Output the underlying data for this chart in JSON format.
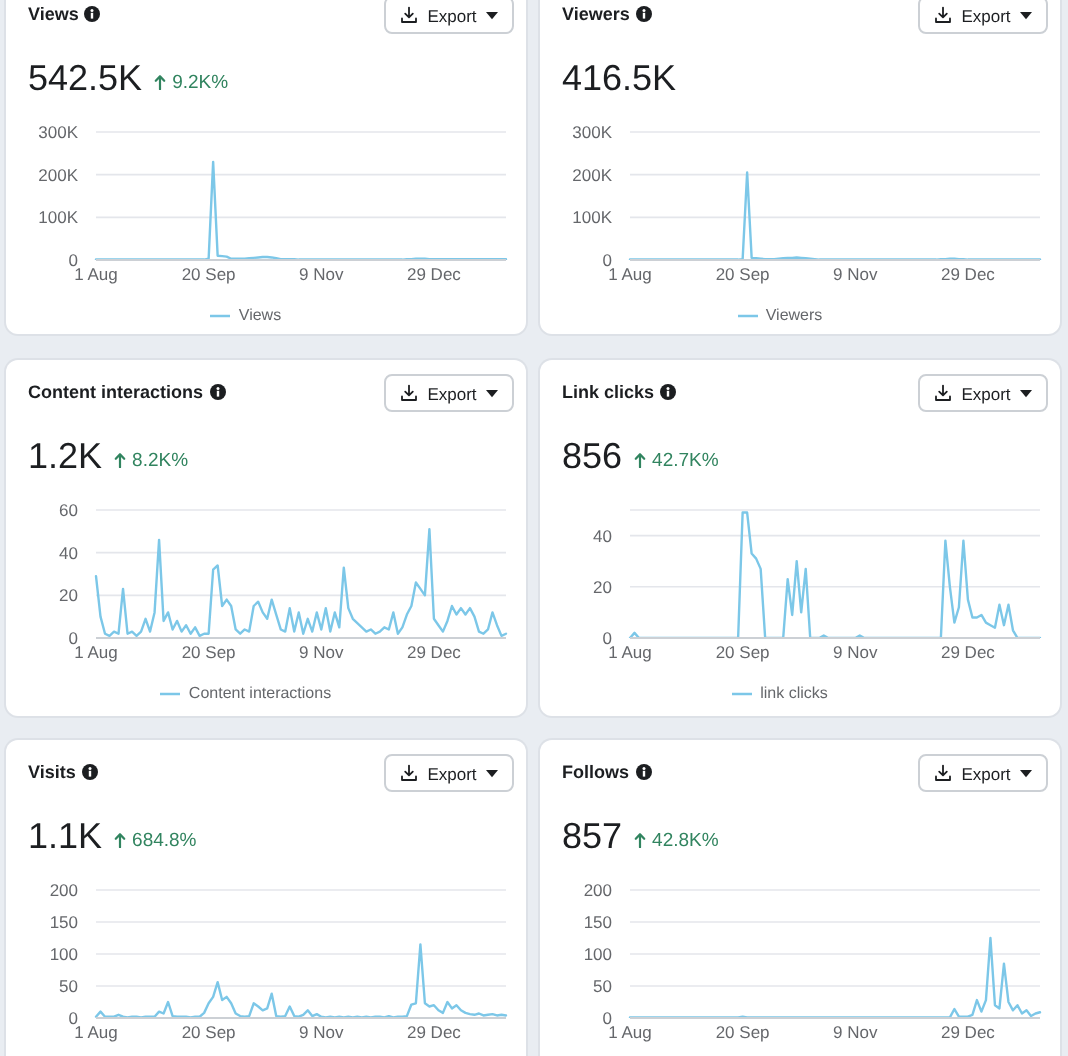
{
  "chart_data": [
    {
      "type": "line",
      "title": "Views",
      "subtitle": "542.5K",
      "annotations": [
        "9.2K%",
        "Export"
      ],
      "categories": [
        "1 Aug",
        null,
        null,
        null,
        null,
        null,
        null,
        null,
        null,
        null,
        null,
        null,
        null,
        null,
        null,
        null,
        null,
        null,
        null,
        null,
        null,
        null,
        null,
        null,
        null,
        "20 Sep",
        null,
        null,
        null,
        null,
        null,
        null,
        null,
        null,
        null,
        null,
        null,
        null,
        null,
        null,
        null,
        null,
        null,
        null,
        null,
        null,
        null,
        null,
        null,
        null,
        "9 Nov",
        null,
        null,
        null,
        null,
        null,
        null,
        null,
        null,
        null,
        null,
        null,
        null,
        null,
        null,
        null,
        null,
        null,
        null,
        null,
        null,
        null,
        null,
        null,
        null,
        "29 Dec",
        null,
        null,
        null,
        null,
        null,
        null,
        null,
        null,
        null,
        null,
        null,
        null,
        null,
        null,
        null,
        null
      ],
      "series": [
        {
          "name": "Views",
          "color": "#7cc7e8",
          "values": [
            1000,
            1000,
            1000,
            1000,
            1000,
            1000,
            1000,
            1000,
            1000,
            1000,
            1000,
            1000,
            1000,
            1000,
            1000,
            1000,
            1000,
            1000,
            1000,
            1000,
            1000,
            1000,
            1000,
            1000,
            1000,
            3000,
            230000,
            10000,
            9000,
            8000,
            3000,
            3000,
            3000,
            3000,
            4000,
            5000,
            6000,
            7000,
            7000,
            6000,
            4000,
            2000,
            2000,
            2000,
            2000,
            1000,
            1000,
            1000,
            1000,
            1000,
            1000,
            1000,
            1000,
            1000,
            1000,
            1000,
            1000,
            1000,
            1000,
            1000,
            1000,
            1000,
            1000,
            1000,
            1000,
            1000,
            1000,
            1000,
            1000,
            2000,
            2000,
            3000,
            3000,
            3000,
            2000,
            2000,
            2000,
            2000,
            2000,
            2000,
            2000,
            2000,
            2000,
            2000,
            2000,
            2000,
            2000,
            2000,
            2000,
            2000,
            2000,
            2000
          ]
        }
      ],
      "ylim": [
        0,
        300000
      ],
      "yticks": [
        0,
        {
          "value": 100000,
          "label": "100K"
        },
        {
          "value": 200000,
          "label": "200K"
        },
        {
          "value": 300000,
          "label": "300K"
        }
      ],
      "grid": "y",
      "legend": "bottom"
    },
    {
      "type": "line",
      "title": "Viewers",
      "subtitle": "416.5K",
      "annotations": [
        "Export"
      ],
      "categories": [
        "1 Aug",
        null,
        null,
        null,
        null,
        null,
        null,
        null,
        null,
        null,
        null,
        null,
        null,
        null,
        null,
        null,
        null,
        null,
        null,
        null,
        null,
        null,
        null,
        null,
        null,
        "20 Sep",
        null,
        null,
        null,
        null,
        null,
        null,
        null,
        null,
        null,
        null,
        null,
        null,
        null,
        null,
        null,
        null,
        null,
        null,
        null,
        null,
        null,
        null,
        null,
        null,
        "9 Nov",
        null,
        null,
        null,
        null,
        null,
        null,
        null,
        null,
        null,
        null,
        null,
        null,
        null,
        null,
        null,
        null,
        null,
        null,
        null,
        null,
        null,
        null,
        null,
        null,
        "29 Dec",
        null,
        null,
        null,
        null,
        null,
        null,
        null,
        null,
        null,
        null,
        null,
        null,
        null,
        null,
        null,
        null
      ],
      "series": [
        {
          "name": "Viewers",
          "color": "#7cc7e8",
          "values": [
            1000,
            1000,
            1000,
            1000,
            1000,
            1000,
            1000,
            1000,
            1000,
            1000,
            1000,
            1000,
            1000,
            1000,
            1000,
            1000,
            1000,
            1000,
            1000,
            1000,
            1000,
            1000,
            1000,
            1000,
            1000,
            2000,
            205000,
            5000,
            4000,
            3000,
            2000,
            2000,
            2000,
            3000,
            4000,
            5000,
            5000,
            6000,
            5000,
            4000,
            3000,
            2000,
            1000,
            1000,
            1000,
            1000,
            1000,
            1000,
            1000,
            1000,
            1000,
            1000,
            1000,
            1000,
            1000,
            1000,
            1000,
            1000,
            1000,
            1000,
            1000,
            1000,
            1000,
            1000,
            1000,
            1000,
            1000,
            1000,
            1000,
            2000,
            2000,
            3000,
            3000,
            2000,
            2000,
            1000,
            1000,
            1000,
            1000,
            1000,
            1000,
            1000,
            1000,
            1000,
            1000,
            1000,
            1000,
            1000,
            1000,
            1000,
            1000,
            1000
          ]
        }
      ],
      "ylim": [
        0,
        300000
      ],
      "yticks": [
        0,
        {
          "value": 100000,
          "label": "100K"
        },
        {
          "value": 200000,
          "label": "200K"
        },
        {
          "value": 300000,
          "label": "300K"
        }
      ],
      "grid": "y",
      "legend": "bottom"
    },
    {
      "type": "line",
      "title": "Content interactions",
      "subtitle": "1.2K",
      "annotations": [
        "8.2K%",
        "Export"
      ],
      "categories": [
        "1 Aug",
        null,
        null,
        null,
        null,
        null,
        null,
        null,
        null,
        null,
        null,
        null,
        null,
        null,
        null,
        null,
        null,
        null,
        null,
        null,
        null,
        null,
        null,
        null,
        null,
        "20 Sep",
        null,
        null,
        null,
        null,
        null,
        null,
        null,
        null,
        null,
        null,
        null,
        null,
        null,
        null,
        null,
        null,
        null,
        null,
        null,
        null,
        null,
        null,
        null,
        null,
        "9 Nov",
        null,
        null,
        null,
        null,
        null,
        null,
        null,
        null,
        null,
        null,
        null,
        null,
        null,
        null,
        null,
        null,
        null,
        null,
        null,
        null,
        null,
        null,
        null,
        null,
        "29 Dec",
        null,
        null,
        null,
        null,
        null,
        null,
        null,
        null,
        null,
        null,
        null,
        null,
        null,
        null,
        null,
        null
      ],
      "series": [
        {
          "name": "Content interactions",
          "color": "#7cc7e8",
          "values": [
            29,
            10,
            2,
            1,
            3,
            2,
            23,
            2,
            3,
            1,
            3,
            9,
            3,
            12,
            46,
            8,
            12,
            4,
            8,
            3,
            6,
            2,
            5,
            1,
            2,
            2,
            32,
            34,
            15,
            18,
            15,
            4,
            2,
            4,
            3,
            15,
            17,
            12,
            9,
            18,
            11,
            4,
            3,
            14,
            3,
            12,
            2,
            9,
            3,
            12,
            4,
            14,
            3,
            12,
            5,
            33,
            14,
            9,
            7,
            5,
            3,
            4,
            2,
            3,
            5,
            4,
            12,
            2,
            5,
            11,
            15,
            26,
            23,
            20,
            51,
            9,
            6,
            3,
            8,
            15,
            11,
            14,
            11,
            14,
            10,
            3,
            2,
            4,
            12,
            6,
            1,
            2
          ]
        }
      ],
      "ylim": [
        0,
        60
      ],
      "yticks": [
        0,
        20,
        40,
        60
      ],
      "grid": "y",
      "legend": "bottom"
    },
    {
      "type": "line",
      "title": "Link clicks",
      "subtitle": "856",
      "annotations": [
        "42.7K%",
        "Export"
      ],
      "categories": [
        "1 Aug",
        null,
        null,
        null,
        null,
        null,
        null,
        null,
        null,
        null,
        null,
        null,
        null,
        null,
        null,
        null,
        null,
        null,
        null,
        null,
        null,
        null,
        null,
        null,
        null,
        "20 Sep",
        null,
        null,
        null,
        null,
        null,
        null,
        null,
        null,
        null,
        null,
        null,
        null,
        null,
        null,
        null,
        null,
        null,
        null,
        null,
        null,
        null,
        null,
        null,
        null,
        "9 Nov",
        null,
        null,
        null,
        null,
        null,
        null,
        null,
        null,
        null,
        null,
        null,
        null,
        null,
        null,
        null,
        null,
        null,
        null,
        null,
        null,
        null,
        null,
        null,
        null,
        "29 Dec",
        null,
        null,
        null,
        null,
        null,
        null,
        null,
        null,
        null,
        null,
        null,
        null,
        null,
        null,
        null,
        null
      ],
      "series": [
        {
          "name": "link clicks",
          "color": "#7cc7e8",
          "values": [
            0,
            2,
            0,
            0,
            0,
            0,
            0,
            0,
            0,
            0,
            0,
            0,
            0,
            0,
            0,
            0,
            0,
            0,
            0,
            0,
            0,
            0,
            0,
            0,
            0,
            49,
            49,
            33,
            31,
            27,
            0,
            0,
            0,
            0,
            0,
            23,
            9,
            30,
            10,
            27,
            0,
            0,
            0,
            1,
            0,
            0,
            0,
            0,
            0,
            0,
            0,
            1,
            0,
            0,
            0,
            0,
            0,
            0,
            0,
            0,
            0,
            0,
            0,
            0,
            0,
            0,
            0,
            0,
            0,
            0,
            38,
            20,
            6,
            12,
            38,
            15,
            8,
            8,
            9,
            6,
            5,
            4,
            13,
            5,
            13,
            3,
            0,
            0,
            0,
            0,
            0,
            0
          ]
        }
      ],
      "ylim": [
        0,
        50
      ],
      "yticks": [
        0,
        20,
        40
      ],
      "grid": "y",
      "legend": "bottom"
    },
    {
      "type": "line",
      "title": "Visits",
      "subtitle": "1.1K",
      "annotations": [
        "684.8%",
        "Export"
      ],
      "categories": [
        "1 Aug",
        null,
        null,
        null,
        null,
        null,
        null,
        null,
        null,
        null,
        null,
        null,
        null,
        null,
        null,
        null,
        null,
        null,
        null,
        null,
        null,
        null,
        null,
        null,
        null,
        "20 Sep",
        null,
        null,
        null,
        null,
        null,
        null,
        null,
        null,
        null,
        null,
        null,
        null,
        null,
        null,
        null,
        null,
        null,
        null,
        null,
        null,
        null,
        null,
        null,
        null,
        "9 Nov",
        null,
        null,
        null,
        null,
        null,
        null,
        null,
        null,
        null,
        null,
        null,
        null,
        null,
        null,
        null,
        null,
        null,
        null,
        null,
        null,
        null,
        null,
        null,
        null,
        "29 Dec",
        null,
        null,
        null,
        null,
        null,
        null,
        null,
        null,
        null,
        null,
        null,
        null,
        null,
        null,
        null,
        null
      ],
      "series": [
        {
          "color": "#7cc7e8",
          "values": [
            2,
            10,
            2,
            2,
            2,
            5,
            2,
            1,
            2,
            2,
            1,
            2,
            2,
            2,
            10,
            7,
            25,
            3,
            2,
            2,
            2,
            1,
            2,
            2,
            8,
            23,
            33,
            56,
            28,
            33,
            23,
            7,
            3,
            2,
            3,
            23,
            18,
            12,
            15,
            38,
            3,
            2,
            3,
            18,
            3,
            2,
            5,
            12,
            3,
            6,
            2,
            1,
            2,
            1,
            2,
            1,
            2,
            1,
            2,
            1,
            2,
            1,
            2,
            2,
            1,
            3,
            1,
            2,
            2,
            3,
            21,
            23,
            115,
            23,
            18,
            20,
            12,
            8,
            25,
            15,
            20,
            12,
            8,
            6,
            5,
            7,
            4,
            5,
            6,
            4,
            5,
            4
          ]
        }
      ],
      "ylim": [
        0,
        200
      ],
      "yticks": [
        0,
        50,
        100,
        150,
        200
      ],
      "grid": "y"
    },
    {
      "type": "line",
      "title": "Follows",
      "subtitle": "857",
      "annotations": [
        "42.8K%",
        "Export"
      ],
      "categories": [
        "1 Aug",
        null,
        null,
        null,
        null,
        null,
        null,
        null,
        null,
        null,
        null,
        null,
        null,
        null,
        null,
        null,
        null,
        null,
        null,
        null,
        null,
        null,
        null,
        null,
        null,
        "20 Sep",
        null,
        null,
        null,
        null,
        null,
        null,
        null,
        null,
        null,
        null,
        null,
        null,
        null,
        null,
        null,
        null,
        null,
        null,
        null,
        null,
        null,
        null,
        null,
        null,
        "9 Nov",
        null,
        null,
        null,
        null,
        null,
        null,
        null,
        null,
        null,
        null,
        null,
        null,
        null,
        null,
        null,
        null,
        null,
        null,
        null,
        null,
        null,
        null,
        null,
        null,
        "29 Dec",
        null,
        null,
        null,
        null,
        null,
        null,
        null,
        null,
        null,
        null,
        null,
        null,
        null,
        null,
        null,
        null
      ],
      "series": [
        {
          "color": "#7cc7e8",
          "values": [
            1,
            1,
            1,
            1,
            1,
            1,
            1,
            1,
            1,
            1,
            1,
            1,
            1,
            1,
            1,
            1,
            1,
            1,
            1,
            1,
            1,
            1,
            1,
            1,
            1,
            2,
            1,
            1,
            1,
            1,
            1,
            1,
            1,
            1,
            1,
            1,
            1,
            1,
            1,
            1,
            1,
            1,
            1,
            1,
            1,
            1,
            1,
            1,
            1,
            1,
            1,
            1,
            1,
            1,
            1,
            1,
            1,
            1,
            1,
            1,
            1,
            1,
            1,
            1,
            1,
            1,
            1,
            1,
            1,
            1,
            1,
            1,
            14,
            2,
            2,
            2,
            5,
            28,
            10,
            28,
            125,
            20,
            15,
            85,
            25,
            12,
            20,
            7,
            12,
            3,
            7,
            9
          ]
        }
      ],
      "ylim": [
        0,
        200
      ],
      "yticks": [
        0,
        50,
        100,
        150,
        200
      ],
      "grid": "y"
    }
  ]
}
